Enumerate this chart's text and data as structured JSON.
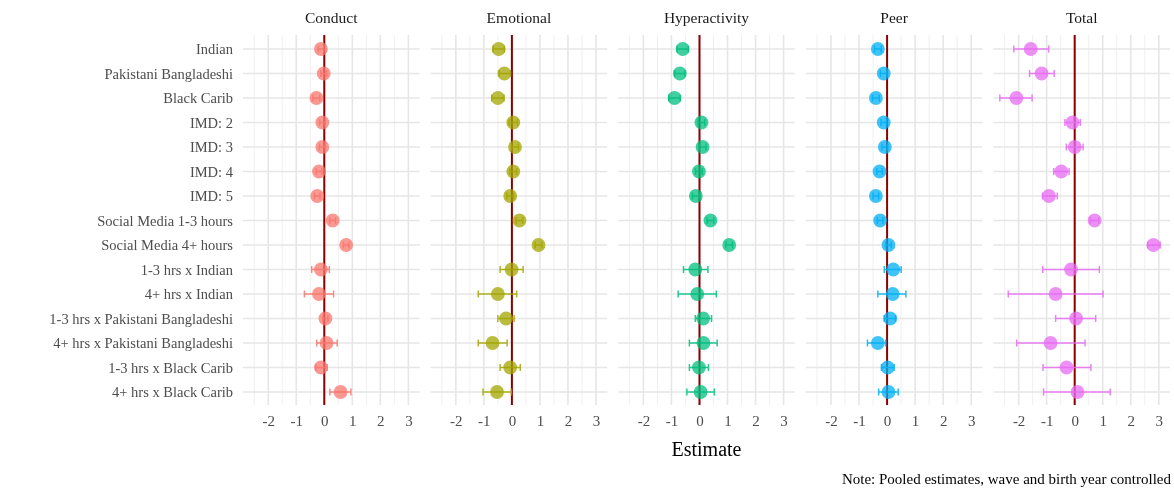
{
  "chart_data": [
    {
      "type": "scatter",
      "title": "Conduct",
      "orientation": "horizontal",
      "marker": "circle",
      "grid": true,
      "categories": [
        "Indian",
        "Pakistani Bangladeshi",
        "Black Carib",
        "IMD: 2",
        "IMD: 3",
        "IMD: 4",
        "IMD: 5",
        "Social Media 1-3 hours",
        "Social Media 4+ hours",
        "1-3 hrs x Indian",
        "4+ hrs x Indian",
        "1-3 hrs x Pakistani Bangladeshi",
        "4+ hrs x Pakistani Bangladeshi",
        "1-3 hrs x Black Carib",
        "4+ hrs x Black Carib"
      ],
      "series": [
        {
          "color": "#f8766d",
          "values": [
            -0.12,
            -0.02,
            -0.28,
            -0.07,
            -0.07,
            -0.19,
            -0.25,
            0.3,
            0.78,
            -0.12,
            -0.19,
            0.04,
            0.08,
            -0.12,
            0.58
          ],
          "errors": [
            0.1,
            0.1,
            0.12,
            0.1,
            0.1,
            0.1,
            0.1,
            0.1,
            0.1,
            [
              -0.45,
              0.18
            ],
            [
              -0.71,
              0.33
            ],
            [
              -0.05,
              0.13
            ],
            [
              -0.27,
              0.46
            ],
            [
              -0.3,
              0.1
            ],
            [
              0.2,
              0.95
            ]
          ]
        }
      ],
      "xlim": [
        -2.9,
        3.4
      ],
      "xticks": [
        -2,
        -1,
        0,
        1,
        2,
        3
      ],
      "ref_lines": [
        {
          "axis": "x",
          "value": 0,
          "color": "#8b0000"
        }
      ]
    },
    {
      "type": "scatter",
      "title": "Emotional",
      "orientation": "horizontal",
      "marker": "circle",
      "grid": true,
      "tick_labels": "x",
      "categories": [
        null,
        null,
        null,
        null,
        null,
        null,
        null,
        null,
        null,
        null,
        null,
        null,
        null,
        null,
        null
      ],
      "series": [
        {
          "color": "#a3a500",
          "values": [
            -0.47,
            -0.27,
            -0.5,
            0.05,
            0.11,
            0.05,
            -0.06,
            0.27,
            0.95,
            -0.01,
            -0.5,
            -0.21,
            -0.69,
            -0.06,
            -0.53
          ],
          "errors": [
            0.2,
            [
              -0.45,
              -0.05
            ],
            0.22,
            0.15,
            0.12,
            0.12,
            0.12,
            0.12,
            0.12,
            [
              -0.42,
              0.4
            ],
            [
              -1.2,
              0.17
            ],
            [
              -0.5,
              0.08
            ],
            [
              -1.2,
              -0.17
            ],
            [
              -0.42,
              0.3
            ],
            [
              -1.03,
              -0.02
            ]
          ]
        }
      ],
      "xlim": [
        -2.9,
        3.4
      ],
      "xticks": [
        -2,
        -1,
        0,
        1,
        2,
        3
      ],
      "ref_lines": [
        {
          "axis": "x",
          "value": 0,
          "color": "#8b0000"
        }
      ]
    },
    {
      "type": "scatter",
      "title": "Hyperactivity",
      "xlabel": "Estimate",
      "orientation": "horizontal",
      "marker": "circle",
      "grid": true,
      "tick_labels": "x",
      "categories": [
        null,
        null,
        null,
        null,
        null,
        null,
        null,
        null,
        null,
        null,
        null,
        null,
        null,
        null,
        null
      ],
      "series": [
        {
          "color": "#00bf7d",
          "values": [
            -0.6,
            -0.7,
            -0.89,
            0.07,
            0.11,
            -0.02,
            -0.13,
            0.39,
            1.06,
            -0.15,
            -0.08,
            0.13,
            0.14,
            -0.02,
            0.04
          ],
          "errors": [
            0.2,
            0.18,
            0.2,
            0.12,
            0.12,
            0.12,
            0.12,
            0.12,
            0.12,
            [
              -0.57,
              0.3
            ],
            [
              -0.76,
              0.6
            ],
            [
              -0.15,
              0.43
            ],
            [
              -0.36,
              0.63
            ],
            [
              -0.36,
              0.32
            ],
            [
              -0.45,
              0.53
            ]
          ]
        }
      ],
      "xlim": [
        -2.9,
        3.4
      ],
      "xticks": [
        -2,
        -1,
        0,
        1,
        2,
        3
      ],
      "ref_lines": [
        {
          "axis": "x",
          "value": 0,
          "color": "#8b0000"
        }
      ]
    },
    {
      "type": "scatter",
      "title": "Peer",
      "orientation": "horizontal",
      "marker": "circle",
      "grid": true,
      "tick_labels": "x",
      "categories": [
        null,
        null,
        null,
        null,
        null,
        null,
        null,
        null,
        null,
        null,
        null,
        null,
        null,
        null,
        null
      ],
      "series": [
        {
          "color": "#00b0f6",
          "values": [
            -0.33,
            -0.12,
            -0.4,
            -0.12,
            -0.08,
            -0.27,
            -0.4,
            -0.25,
            0.05,
            0.22,
            0.2,
            0.11,
            -0.33,
            0.02,
            0.05
          ],
          "errors": [
            0.12,
            0.12,
            0.12,
            0.1,
            0.1,
            0.1,
            0.1,
            0.1,
            0.1,
            [
              -0.1,
              0.5
            ],
            [
              -0.33,
              0.67
            ],
            [
              -0.1,
              0.3
            ],
            [
              -0.7,
              -0.05
            ],
            [
              -0.2,
              0.25
            ],
            [
              -0.3,
              0.4
            ]
          ]
        }
      ],
      "xlim": [
        -2.9,
        3.4
      ],
      "xticks": [
        -2,
        -1,
        0,
        1,
        2,
        3
      ],
      "ref_lines": [
        {
          "axis": "x",
          "value": 0,
          "color": "#8b0000"
        }
      ]
    },
    {
      "type": "scatter",
      "title": "Total",
      "orientation": "horizontal",
      "marker": "circle",
      "grid": true,
      "tick_labels": "x",
      "annotations": [
        "Note: Pooled estimates, wave and birth year controlled"
      ],
      "categories": [
        null,
        null,
        null,
        null,
        null,
        null,
        null,
        null,
        null,
        null,
        null,
        null,
        null,
        null,
        null
      ],
      "series": [
        {
          "color": "#e76bf3",
          "values": [
            -1.57,
            -1.18,
            -2.08,
            -0.08,
            0,
            -0.48,
            -0.92,
            0.71,
            2.81,
            -0.13,
            -0.68,
            0.05,
            -0.86,
            -0.29,
            0.1
          ],
          "errors": [
            [
              -2.17,
              -0.93
            ],
            [
              -1.61,
              -0.73
            ],
            [
              -2.67,
              -1.52
            ],
            [
              -0.35,
              0.2
            ],
            [
              -0.3,
              0.3
            ],
            [
              -0.75,
              -0.2
            ],
            [
              -1.15,
              -0.62
            ],
            0.15,
            [
              2.6,
              3.05
            ],
            [
              -1.14,
              0.88
            ],
            [
              -2.37,
              1.01
            ],
            [
              -0.68,
              0.75
            ],
            [
              -2.07,
              0.37
            ],
            [
              -1.13,
              0.58
            ],
            [
              -1.11,
              1.27
            ]
          ]
        }
      ],
      "xlim": [
        -2.9,
        3.4
      ],
      "xticks": [
        -2,
        -1,
        0,
        1,
        2,
        3
      ],
      "ref_lines": [
        {
          "axis": "x",
          "value": 0,
          "color": "#8b0000"
        }
      ]
    }
  ]
}
